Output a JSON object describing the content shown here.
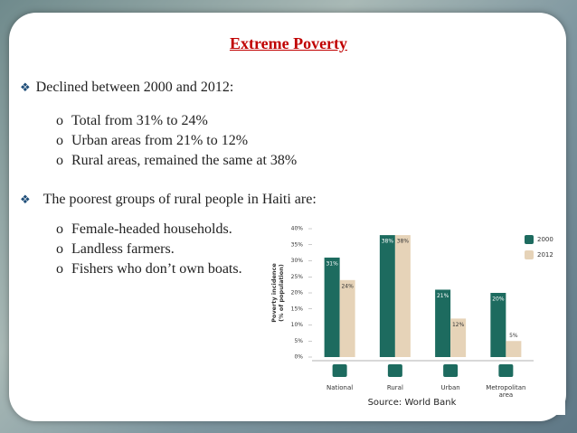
{
  "slide": {
    "title": "Extreme Poverty",
    "bullets": [
      {
        "text": "Declined between 2000 and 2012:",
        "items": [
          "Total from 31% to 24%",
          "Urban areas from 21% to 12%",
          "Rural areas, remained the same at 38%"
        ]
      },
      {
        "text": "The poorest groups of rural people in Haiti are:",
        "items": [
          "Female-headed households.",
          "Landless farmers.",
          "Fishers who don’t own boats."
        ]
      }
    ]
  },
  "chart_data": {
    "type": "bar",
    "ylabel": [
      "Poverty incidence",
      "(% of population)"
    ],
    "categories": [
      "National",
      "Rural",
      "Urban",
      "Metropolitan area"
    ],
    "series": [
      {
        "name": "2000",
        "color": "#1d6b5f",
        "values": [
          31,
          38,
          21,
          20
        ],
        "value_labels": [
          "31%",
          "38%",
          "21%",
          "20%"
        ]
      },
      {
        "name": "2012",
        "color": "#e6d3b8",
        "values": [
          24,
          38,
          12,
          5
        ],
        "value_labels": [
          "24%",
          "38%",
          "12%",
          "5%"
        ]
      }
    ],
    "ylim": [
      0,
      40
    ],
    "yticks": [
      {
        "value": 0,
        "label": "0%"
      },
      {
        "value": 5,
        "label": "5%"
      },
      {
        "value": 10,
        "label": "10%"
      },
      {
        "value": 15,
        "label": "15%"
      },
      {
        "value": 20,
        "label": "20%"
      },
      {
        "value": 25,
        "label": "25%"
      },
      {
        "value": 30,
        "label": "30%"
      },
      {
        "value": 35,
        "label": "35%"
      },
      {
        "value": 40,
        "label": "40%"
      }
    ],
    "legend": "right",
    "source": "Source: World Bank"
  }
}
